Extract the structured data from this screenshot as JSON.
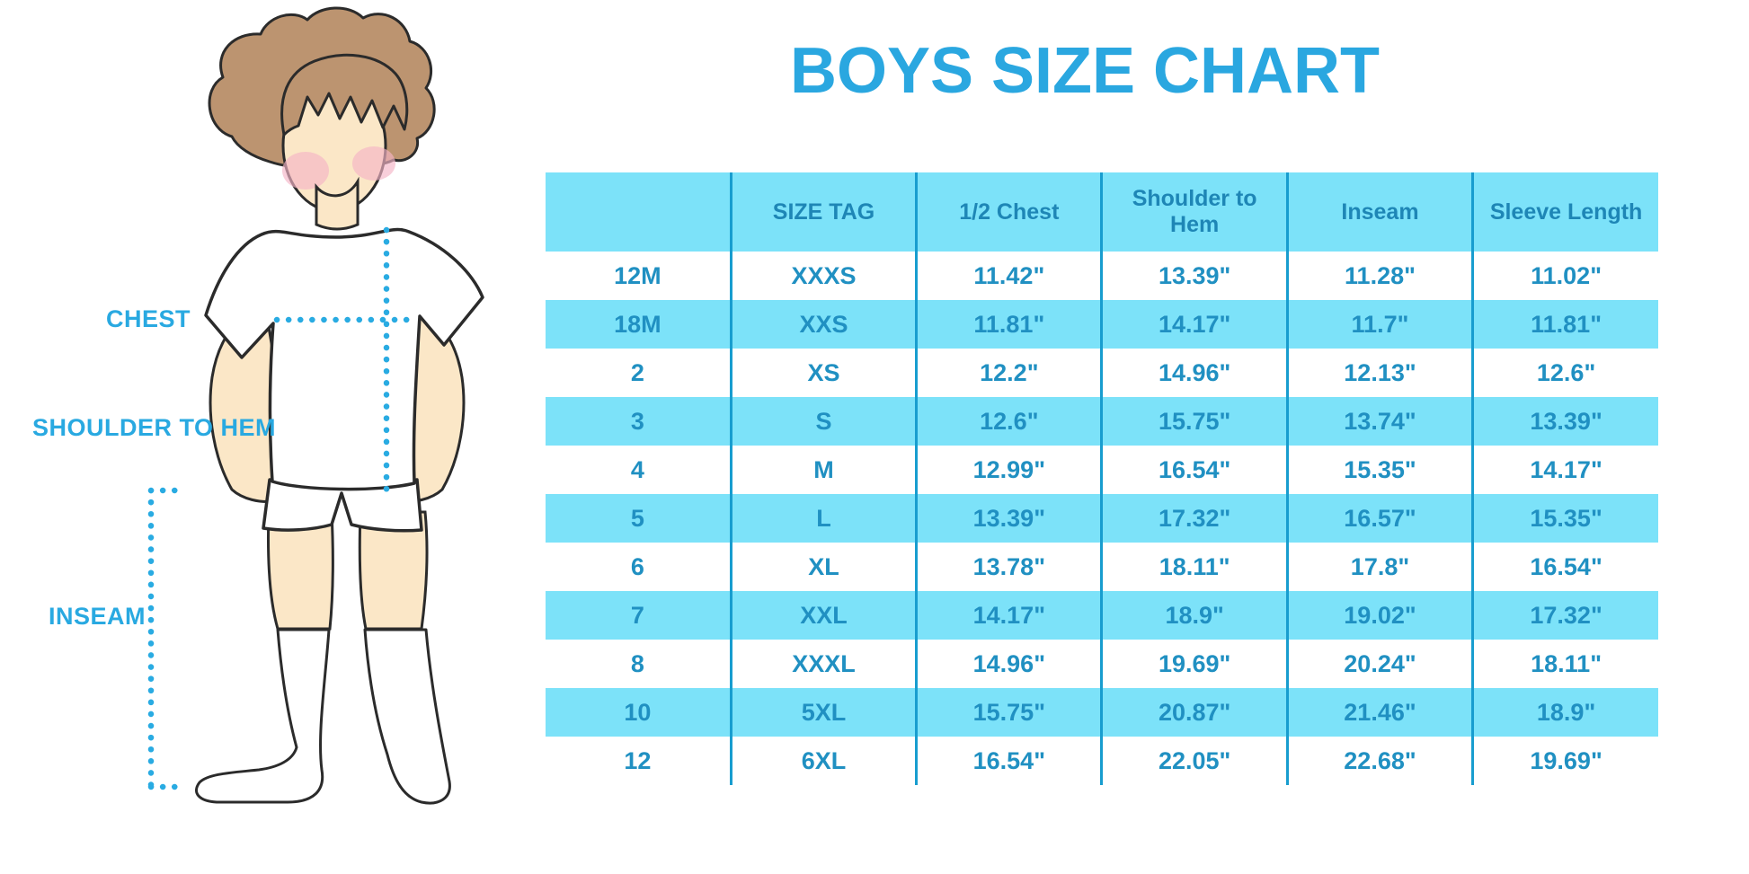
{
  "title": "BOYS SIZE CHART",
  "measurement_labels": {
    "chest": "CHEST",
    "shoulder_to_hem": "SHOULDER TO HEM",
    "inseam": "INSEAM"
  },
  "chart_data": {
    "type": "table",
    "title": "BOYS SIZE CHART",
    "columns": [
      "",
      "SIZE TAG",
      "1/2 Chest",
      "Shoulder to Hem",
      "Inseam",
      "Sleeve Length"
    ],
    "rows": [
      [
        "12M",
        "XXXS",
        "11.42\"",
        "13.39\"",
        "11.28\"",
        "11.02\""
      ],
      [
        "18M",
        "XXS",
        "11.81\"",
        "14.17\"",
        "11.7\"",
        "11.81\""
      ],
      [
        "2",
        "XS",
        "12.2\"",
        "14.96\"",
        "12.13\"",
        "12.6\""
      ],
      [
        "3",
        "S",
        "12.6\"",
        "15.75\"",
        "13.74\"",
        "13.39\""
      ],
      [
        "4",
        "M",
        "12.99\"",
        "16.54\"",
        "15.35\"",
        "14.17\""
      ],
      [
        "5",
        "L",
        "13.39\"",
        "17.32\"",
        "16.57\"",
        "15.35\""
      ],
      [
        "6",
        "XL",
        "13.78\"",
        "18.11\"",
        "17.8\"",
        "16.54\""
      ],
      [
        "7",
        "XXL",
        "14.17\"",
        "18.9\"",
        "19.02\"",
        "17.32\""
      ],
      [
        "8",
        "XXXL",
        "14.96\"",
        "19.69\"",
        "20.24\"",
        "18.11\""
      ],
      [
        "10",
        "5XL",
        "15.75\"",
        "20.87\"",
        "21.46\"",
        "18.9\""
      ],
      [
        "12",
        "6XL",
        "16.54\"",
        "22.05\"",
        "22.68\"",
        "19.69\""
      ]
    ],
    "layout": {
      "row_striping": "white and light-cyan alternating, header cyan",
      "grid": "vertical column dividers only"
    }
  },
  "colors": {
    "accent_cyan": "#29a9e1",
    "table_fill": "#7ce2f9",
    "table_header_text": "#1e86b6",
    "table_body_text": "#2090c2",
    "divider": "#189dcf",
    "outline": "#2b2b2b",
    "skin": "#fbe7c7",
    "hair": "#bc9470",
    "cheek": "#f4b3c6"
  }
}
